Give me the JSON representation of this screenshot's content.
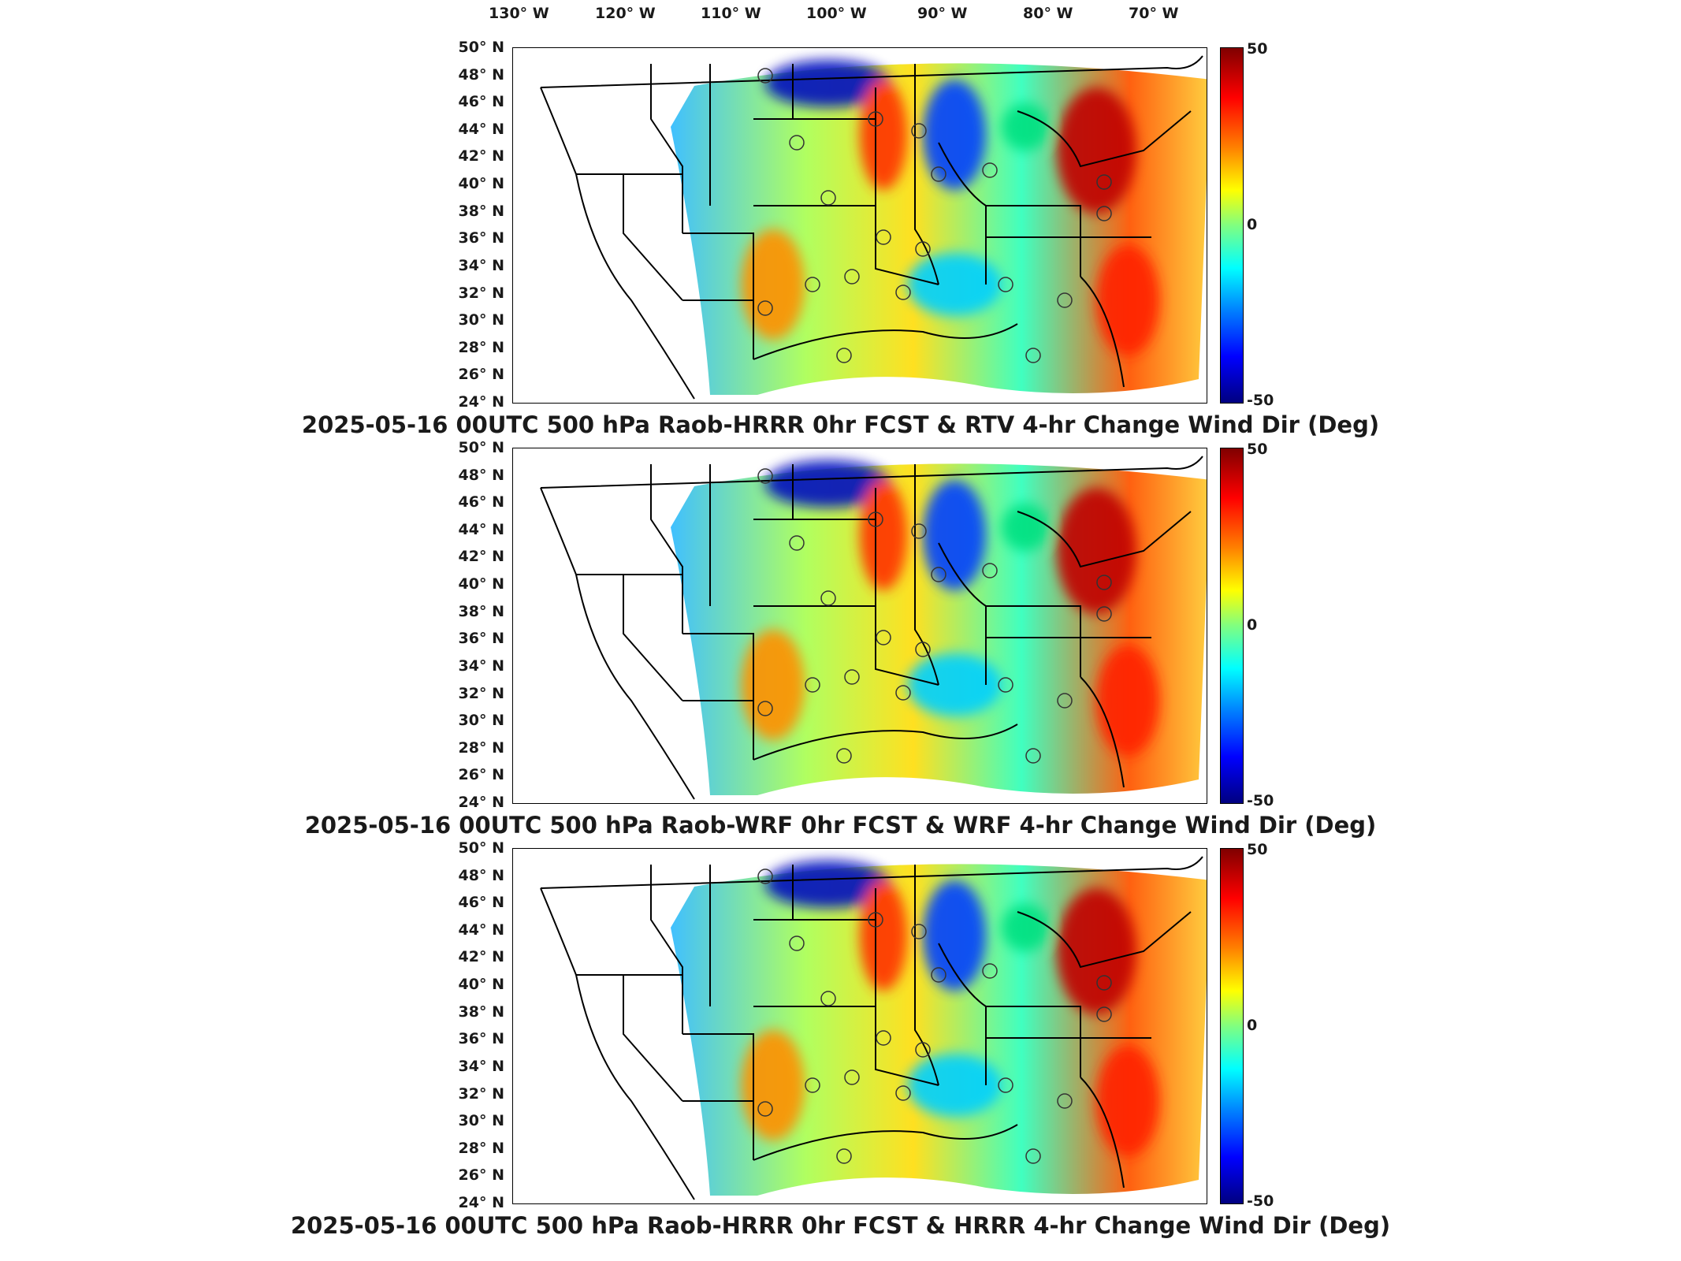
{
  "lon_labels": [
    "130° W",
    "120° W",
    "110° W",
    "100° W",
    "90° W",
    "80° W",
    "70° W"
  ],
  "lat_labels": [
    "50° N",
    "48° N",
    "46° N",
    "44° N",
    "42° N",
    "40° N",
    "38° N",
    "36° N",
    "34° N",
    "32° N",
    "30° N",
    "28° N",
    "26° N",
    "24° N"
  ],
  "colorbar": {
    "max_label": "50",
    "mid_label": "0",
    "min_label": "-50",
    "min": -50,
    "max": 50
  },
  "panels": [
    {
      "title": "2025-05-16 00UTC 500 hPa Raob-HRRR 0hr FCST & RTV 4-hr Change Wind Dir (Deg)"
    },
    {
      "title": "2025-05-16 00UTC 500 hPa Raob-WRF 0hr FCST & WRF 4-hr Change Wind Dir (Deg)"
    },
    {
      "title": "2025-05-16 00UTC 500 hPa Raob-HRRR 0hr FCST & HRRR 4-hr Change Wind Dir (Deg)"
    }
  ]
}
